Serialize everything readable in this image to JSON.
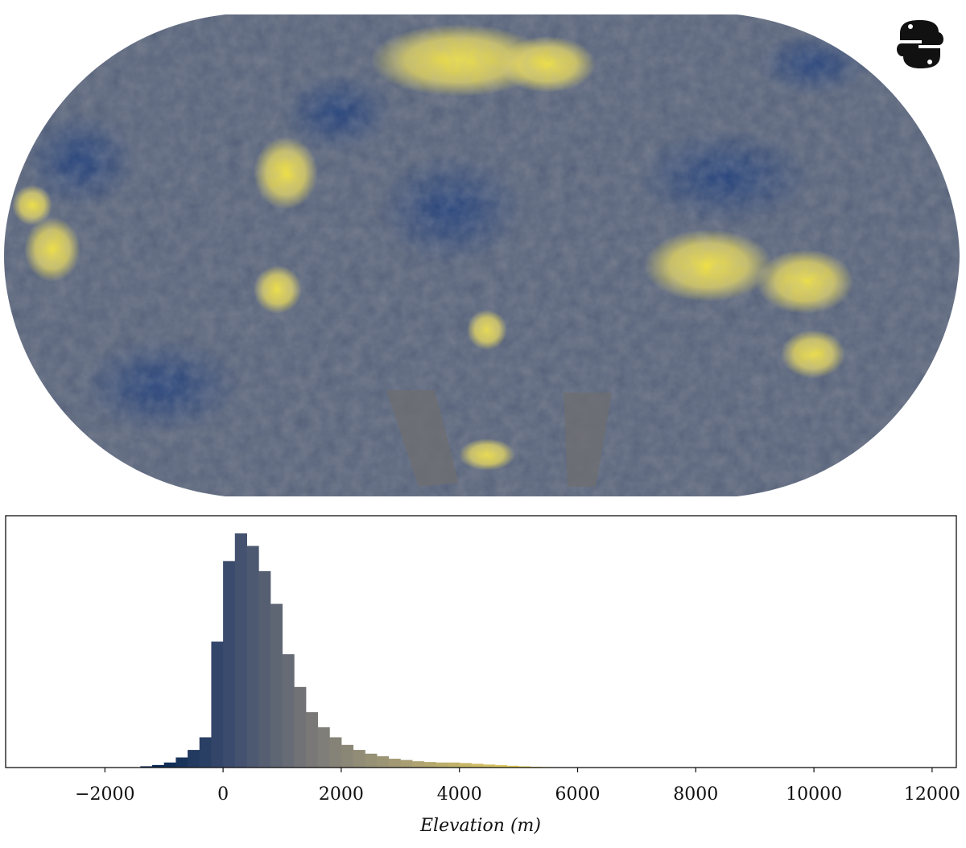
{
  "chart_data": {
    "type": "histogram",
    "xlabel": "Elevation (m)",
    "bins": [
      -1400,
      -1200,
      -1000,
      -800,
      -600,
      -400,
      -200,
      0,
      200,
      400,
      600,
      800,
      1000,
      1200,
      1400,
      1600,
      1800,
      2000,
      2200,
      2400,
      2600,
      2800,
      3000,
      3200,
      3400,
      3600,
      3800,
      4000,
      4200,
      4400,
      4600,
      4800,
      5000,
      5200,
      5400,
      5600,
      5800,
      6000
    ],
    "values": [
      0.5,
      1,
      2,
      4,
      7,
      12,
      50,
      82,
      93,
      88,
      78,
      65,
      45,
      32,
      22,
      16,
      12,
      9,
      7,
      5.5,
      4.5,
      3.5,
      3,
      2.5,
      2.2,
      2,
      2,
      1.8,
      1.5,
      1.2,
      1,
      0.7,
      0.5,
      0.3,
      0.2,
      0.1,
      0.05
    ],
    "colormap": [
      "#00224e",
      "#3d4c6e",
      "#7c7b78",
      "#a59c74",
      "#d3c064",
      "#fee838"
    ],
    "xlim": [
      -3680,
      12410
    ],
    "ylim": [
      0,
      100
    ],
    "xticks": [
      {
        "value": -2000,
        "label": "−2000"
      },
      0,
      2000,
      4000,
      6000,
      8000,
      10000,
      12000
    ]
  }
}
